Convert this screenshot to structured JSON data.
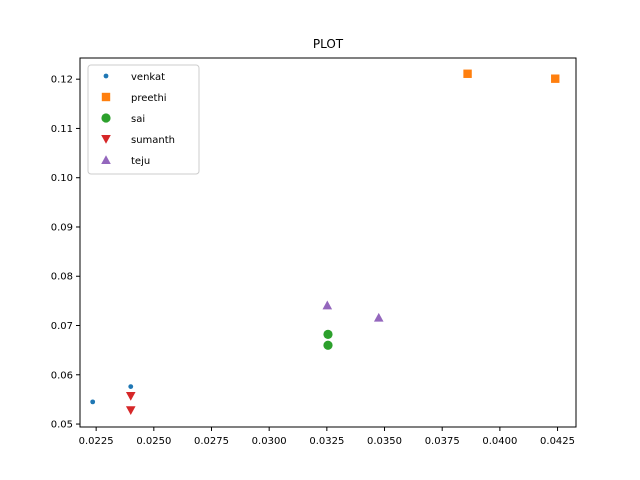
{
  "chart_data": {
    "type": "scatter",
    "title": "PLOT",
    "xlabel": "",
    "ylabel": "",
    "xlim": [
      0.0218,
      0.0433
    ],
    "ylim": [
      0.0494,
      0.1243
    ],
    "x_ticks": [
      0.0225,
      0.025,
      0.0275,
      0.03,
      0.0325,
      0.035,
      0.0375,
      0.04,
      0.0425
    ],
    "x_tick_labels": [
      "0.0225",
      "0.0250",
      "0.0275",
      "0.0300",
      "0.0325",
      "0.0350",
      "0.0375",
      "0.0400",
      "0.0425"
    ],
    "y_ticks": [
      0.05,
      0.06,
      0.07,
      0.08,
      0.09,
      0.1,
      0.11,
      0.12
    ],
    "y_tick_labels": [
      "0.05",
      "0.06",
      "0.07",
      "0.08",
      "0.09",
      "0.10",
      "0.11",
      "0.12"
    ],
    "grid": false,
    "legend_position": "top-left",
    "series": [
      {
        "name": "venkat",
        "marker": "point",
        "color": "#1f77b4",
        "points": [
          [
            0.02235,
            0.0545
          ],
          [
            0.024,
            0.0576
          ]
        ]
      },
      {
        "name": "preethi",
        "marker": "square",
        "color": "#ff7f0e",
        "points": [
          [
            0.0386,
            0.1211
          ],
          [
            0.0424,
            0.1201
          ]
        ]
      },
      {
        "name": "sai",
        "marker": "circle",
        "color": "#2ca02c",
        "points": [
          [
            0.03255,
            0.0682
          ],
          [
            0.03255,
            0.066
          ]
        ]
      },
      {
        "name": "sumanth",
        "marker": "triangle-down",
        "color": "#d62728",
        "points": [
          [
            0.024,
            0.0557
          ],
          [
            0.024,
            0.0528
          ]
        ]
      },
      {
        "name": "teju",
        "marker": "triangle-up",
        "color": "#9467bd",
        "points": [
          [
            0.03252,
            0.0741
          ],
          [
            0.03475,
            0.0716
          ]
        ]
      }
    ]
  }
}
